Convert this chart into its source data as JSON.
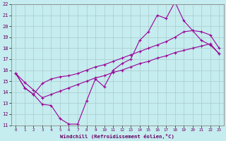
{
  "xlabel": "Windchill (Refroidissement éolien,°C)",
  "xlim": [
    -0.5,
    23.5
  ],
  "ylim": [
    11,
    22
  ],
  "xticks": [
    0,
    1,
    2,
    3,
    4,
    5,
    6,
    7,
    8,
    9,
    10,
    11,
    12,
    13,
    14,
    15,
    16,
    17,
    18,
    19,
    20,
    21,
    22,
    23
  ],
  "yticks": [
    11,
    12,
    13,
    14,
    15,
    16,
    17,
    18,
    19,
    20,
    21,
    22
  ],
  "background_color": "#c5ecee",
  "grid_color": "#aacccc",
  "line_color": "#990099",
  "line1_x": [
    0,
    1,
    2,
    3,
    4,
    5,
    6,
    7,
    8,
    9,
    10,
    11,
    12,
    13,
    14,
    15,
    16,
    17,
    18,
    19,
    20,
    21,
    22,
    23
  ],
  "line1_y": [
    15.7,
    14.4,
    13.8,
    12.9,
    12.8,
    11.6,
    11.1,
    11.1,
    13.2,
    15.2,
    14.5,
    16.0,
    16.6,
    17.0,
    18.7,
    19.5,
    21.0,
    20.7,
    22.2,
    20.5,
    19.6,
    18.7,
    18.3,
    17.5
  ],
  "line2_x": [
    0,
    1,
    2,
    3,
    4,
    5,
    6,
    7,
    8,
    9,
    10,
    11,
    12,
    13,
    14,
    15,
    16,
    17,
    18,
    19,
    20,
    21,
    22,
    23
  ],
  "line2_y": [
    15.7,
    14.4,
    13.8,
    14.8,
    15.2,
    15.4,
    15.5,
    15.7,
    16.0,
    16.3,
    16.5,
    16.8,
    17.1,
    17.4,
    17.7,
    18.0,
    18.3,
    18.6,
    19.0,
    19.5,
    19.6,
    19.5,
    19.2,
    18.0
  ],
  "line3_x": [
    0,
    1,
    2,
    3,
    4,
    5,
    6,
    7,
    8,
    9,
    10,
    11,
    12,
    13,
    14,
    15,
    16,
    17,
    18,
    19,
    20,
    21,
    22,
    23
  ],
  "line3_y": [
    15.7,
    14.9,
    14.2,
    13.5,
    13.8,
    14.1,
    14.4,
    14.7,
    15.0,
    15.3,
    15.5,
    15.8,
    16.0,
    16.3,
    16.6,
    16.8,
    17.1,
    17.3,
    17.6,
    17.8,
    18.0,
    18.2,
    18.4,
    17.5
  ]
}
